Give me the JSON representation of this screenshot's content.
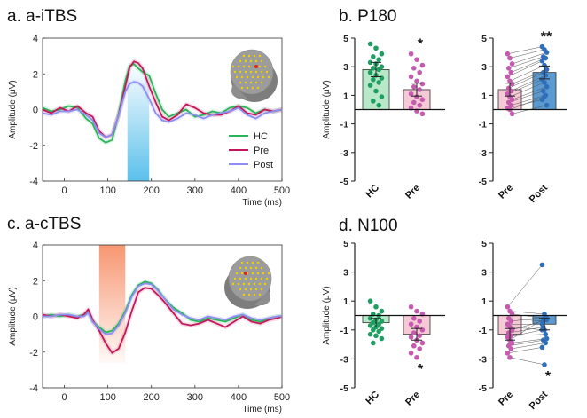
{
  "figure": {
    "panel_titles": {
      "a": "a. a-iTBS",
      "b": "b. P180",
      "c": "c. a-cTBS",
      "d": "d. N100"
    }
  },
  "colors": {
    "HC": "#2bb35a",
    "Pre": "#c2185b",
    "Post": "#8f8cf2",
    "HC_fill": "#b9e8c9",
    "Pre_fill": "#f5c9d6",
    "Post_fill": "#5a9ad0",
    "hc_dot": "#1e9e60",
    "pre_dot": "#c55aae",
    "post_dot": "#2f6eb8",
    "itbs_band": "#5bc0eb",
    "ctbs_band": "#f7916a",
    "head": "#9c9c9c",
    "electrode": "#f0d000",
    "target": "#e0201c"
  },
  "chart_data": [
    {
      "id": "a",
      "type": "line",
      "title": "a. a-iTBS",
      "xlabel": "Time (ms)",
      "ylabel": "Amplitude (μV)",
      "xlim": [
        -50,
        500
      ],
      "ylim": [
        -4,
        4
      ],
      "xticks": [
        0,
        100,
        200,
        300,
        400,
        500
      ],
      "yticks": [
        -4,
        -2,
        0,
        2,
        4
      ],
      "legend": [
        "HC",
        "Pre",
        "Post"
      ],
      "legend_position": "bottom-right",
      "highlight": {
        "from": 145,
        "to": 195,
        "color_key": "itbs_band"
      },
      "series": [
        {
          "name": "HC",
          "x": [
            -50,
            -30,
            -10,
            10,
            30,
            50,
            65,
            80,
            95,
            110,
            125,
            140,
            150,
            160,
            170,
            180,
            195,
            210,
            225,
            240,
            260,
            280,
            300,
            320,
            340,
            360,
            380,
            400,
            420,
            440,
            460,
            480,
            500
          ],
          "y": [
            0.1,
            -0.1,
            0.0,
            0.2,
            0.1,
            -0.5,
            -0.8,
            -1.6,
            -1.85,
            -1.7,
            -0.2,
            1.6,
            2.45,
            2.55,
            2.3,
            2.1,
            1.9,
            0.9,
            0.0,
            -0.4,
            -0.2,
            0.0,
            -0.4,
            -0.3,
            -0.1,
            -0.2,
            0.1,
            0.2,
            0.1,
            -0.2,
            0.0,
            -0.1,
            0.0
          ]
        },
        {
          "name": "Pre",
          "x": [
            -50,
            -30,
            -10,
            10,
            30,
            50,
            65,
            80,
            95,
            110,
            125,
            140,
            150,
            160,
            170,
            180,
            195,
            210,
            225,
            240,
            260,
            280,
            300,
            320,
            340,
            360,
            380,
            400,
            420,
            440,
            460,
            480,
            500
          ],
          "y": [
            0.0,
            -0.2,
            0.1,
            -0.1,
            0.2,
            -0.2,
            -0.4,
            -1.2,
            -1.55,
            -1.4,
            -0.3,
            1.3,
            2.35,
            2.7,
            2.6,
            2.3,
            1.3,
            0.4,
            -0.4,
            -0.6,
            -0.3,
            0.3,
            0.1,
            -0.2,
            -0.3,
            -0.3,
            -0.1,
            0.2,
            -0.2,
            -0.3,
            0.0,
            -0.1,
            0.0
          ]
        },
        {
          "name": "Post",
          "x": [
            -50,
            -30,
            -10,
            10,
            30,
            50,
            65,
            80,
            95,
            110,
            125,
            140,
            150,
            160,
            170,
            180,
            195,
            210,
            225,
            240,
            260,
            280,
            300,
            320,
            340,
            360,
            380,
            400,
            420,
            440,
            460,
            480,
            500
          ],
          "y": [
            -0.2,
            -0.3,
            -0.1,
            -0.1,
            0.0,
            -0.3,
            -0.6,
            -1.3,
            -1.55,
            -1.4,
            -0.3,
            1.0,
            1.45,
            1.55,
            1.5,
            1.3,
            0.6,
            -0.2,
            -0.6,
            -0.7,
            -0.5,
            -0.2,
            -0.3,
            -0.5,
            -0.3,
            -0.2,
            -0.1,
            0.1,
            -0.3,
            -0.5,
            -0.2,
            -0.1,
            0.0
          ]
        }
      ]
    },
    {
      "id": "c",
      "type": "line",
      "title": "c. a-cTBS",
      "xlabel": "Time (ms)",
      "ylabel": "Amplitude (μV)",
      "xlim": [
        -50,
        500
      ],
      "ylim": [
        -4,
        4
      ],
      "xticks": [
        0,
        100,
        200,
        300,
        400,
        500
      ],
      "yticks": [
        -4,
        -2,
        0,
        2,
        4
      ],
      "highlight": {
        "from": 80,
        "to": 140,
        "color_key": "ctbs_band"
      },
      "series": [
        {
          "name": "HC",
          "x": [
            -50,
            -30,
            -10,
            10,
            30,
            45,
            55,
            65,
            80,
            95,
            110,
            125,
            140,
            155,
            170,
            185,
            200,
            215,
            230,
            250,
            270,
            290,
            310,
            330,
            350,
            370,
            390,
            410,
            430,
            450,
            470,
            490,
            500
          ],
          "y": [
            0.0,
            0.1,
            0.0,
            0.1,
            0.0,
            0.1,
            0.2,
            -0.3,
            -0.6,
            -0.9,
            -0.8,
            -0.4,
            0.3,
            1.2,
            1.75,
            1.95,
            1.85,
            1.5,
            1.0,
            0.5,
            0.2,
            -0.2,
            -0.3,
            -0.1,
            -0.2,
            -0.3,
            -0.1,
            0.1,
            -0.2,
            -0.3,
            -0.1,
            0.0,
            0.0
          ]
        },
        {
          "name": "Pre",
          "x": [
            -50,
            -30,
            -10,
            10,
            30,
            45,
            55,
            65,
            80,
            95,
            110,
            125,
            140,
            155,
            170,
            185,
            200,
            215,
            230,
            250,
            270,
            290,
            310,
            330,
            350,
            370,
            390,
            410,
            430,
            450,
            470,
            490,
            500
          ],
          "y": [
            0.1,
            0.0,
            0.1,
            0.0,
            -0.1,
            0.1,
            0.4,
            -0.2,
            -0.8,
            -1.5,
            -2.05,
            -1.8,
            -0.9,
            0.3,
            1.35,
            1.6,
            1.55,
            1.2,
            0.8,
            0.2,
            -0.4,
            -0.5,
            -0.4,
            -0.2,
            -0.4,
            -0.6,
            -0.3,
            0.0,
            -0.3,
            -0.4,
            -0.2,
            -0.1,
            0.0
          ]
        },
        {
          "name": "Post",
          "x": [
            -50,
            -30,
            -10,
            10,
            30,
            45,
            55,
            65,
            80,
            95,
            110,
            125,
            140,
            155,
            170,
            185,
            200,
            215,
            230,
            250,
            270,
            290,
            310,
            330,
            350,
            370,
            390,
            410,
            430,
            450,
            470,
            490,
            500
          ],
          "y": [
            0.0,
            0.0,
            0.1,
            0.1,
            0.0,
            0.0,
            0.2,
            -0.3,
            -0.7,
            -1.0,
            -0.95,
            -0.5,
            0.2,
            1.1,
            1.7,
            1.85,
            1.8,
            1.45,
            1.0,
            0.4,
            0.1,
            -0.1,
            -0.2,
            0.0,
            -0.1,
            -0.2,
            0.0,
            0.1,
            -0.1,
            -0.2,
            -0.1,
            0.0,
            0.0
          ]
        }
      ]
    },
    {
      "id": "b-left",
      "type": "bar",
      "ylabel": "Amplitude (μV)",
      "ylim": [
        -5,
        5
      ],
      "yticks": [
        -5,
        -3,
        -1,
        1,
        3,
        5
      ],
      "categories": [
        "HC",
        "Pre"
      ],
      "values": [
        2.8,
        1.4
      ],
      "errors": [
        0.5,
        0.45
      ],
      "significance": [
        "",
        "*"
      ],
      "points": [
        [
          4.6,
          4.3,
          3.9,
          3.7,
          3.5,
          3.3,
          3.2,
          3.0,
          2.9,
          2.8,
          2.6,
          2.4,
          2.2,
          2.1,
          1.9,
          1.7,
          1.3,
          0.9,
          0.6,
          0.3
        ],
        [
          3.9,
          3.5,
          3.1,
          2.9,
          2.6,
          2.3,
          2.0,
          1.8,
          1.6,
          1.4,
          1.1,
          0.9,
          0.7,
          0.5,
          0.3,
          0.1,
          -0.1,
          -0.3
        ]
      ]
    },
    {
      "id": "b-right",
      "type": "bar",
      "ylim": [
        -5,
        5
      ],
      "yticks": [
        -5,
        -3,
        -1,
        1,
        3,
        5
      ],
      "categories": [
        "Pre",
        "Post"
      ],
      "values": [
        1.4,
        2.6
      ],
      "errors": [
        0.45,
        0.45
      ],
      "significance": [
        "",
        "**"
      ],
      "paired": true,
      "points": [
        [
          3.9,
          3.6,
          3.2,
          2.9,
          2.6,
          2.3,
          2.0,
          1.8,
          1.5,
          1.3,
          1.1,
          0.9,
          0.7,
          0.5,
          0.3,
          0.1,
          0.0,
          -0.3
        ],
        [
          4.4,
          4.2,
          4.0,
          3.7,
          3.6,
          3.4,
          3.1,
          2.8,
          2.6,
          2.4,
          2.1,
          1.9,
          1.6,
          1.3,
          1.0,
          0.7,
          0.9,
          0.3
        ]
      ]
    },
    {
      "id": "d-left",
      "type": "bar",
      "ylabel": "Amplitude (μV)",
      "ylim": [
        -5,
        5
      ],
      "yticks": [
        -5,
        -3,
        -1,
        1,
        3,
        5
      ],
      "categories": [
        "HC",
        "Pre"
      ],
      "values": [
        -0.5,
        -1.3
      ],
      "errors": [
        0.3,
        0.4
      ],
      "significance": [
        "",
        "*"
      ],
      "points": [
        [
          1.0,
          0.6,
          0.3,
          0.1,
          0.0,
          -0.2,
          -0.3,
          -0.4,
          -0.5,
          -0.6,
          -0.7,
          -0.8,
          -0.9,
          -1.0,
          -1.1,
          -1.3,
          -1.4,
          -1.6,
          -1.9
        ],
        [
          0.6,
          0.3,
          0.1,
          -0.2,
          -0.4,
          -0.6,
          -0.8,
          -1.0,
          -1.2,
          -1.4,
          -1.5,
          -1.7,
          -1.9,
          -2.1,
          -2.3,
          -2.6,
          -2.9
        ]
      ]
    },
    {
      "id": "d-right",
      "type": "bar",
      "ylim": [
        -5,
        5
      ],
      "yticks": [
        -5,
        -3,
        -1,
        1,
        3,
        5
      ],
      "categories": [
        "Pre",
        "Post"
      ],
      "values": [
        -1.3,
        -0.6
      ],
      "errors": [
        0.4,
        0.4
      ],
      "significance": [
        "",
        "*"
      ],
      "paired": true,
      "points": [
        [
          0.6,
          0.3,
          0.1,
          -0.2,
          -0.4,
          -0.6,
          -0.8,
          -1.0,
          -1.2,
          -1.4,
          -1.5,
          -1.7,
          -1.9,
          -2.1,
          -2.3,
          -2.6,
          -2.9
        ],
        [
          3.5,
          0.1,
          -0.2,
          -0.4,
          -0.1,
          -0.6,
          -1.0,
          -0.3,
          -0.8,
          -1.3,
          -1.0,
          -0.2,
          -1.6,
          -1.7,
          -1.9,
          -2.2,
          -3.4
        ]
      ]
    }
  ]
}
